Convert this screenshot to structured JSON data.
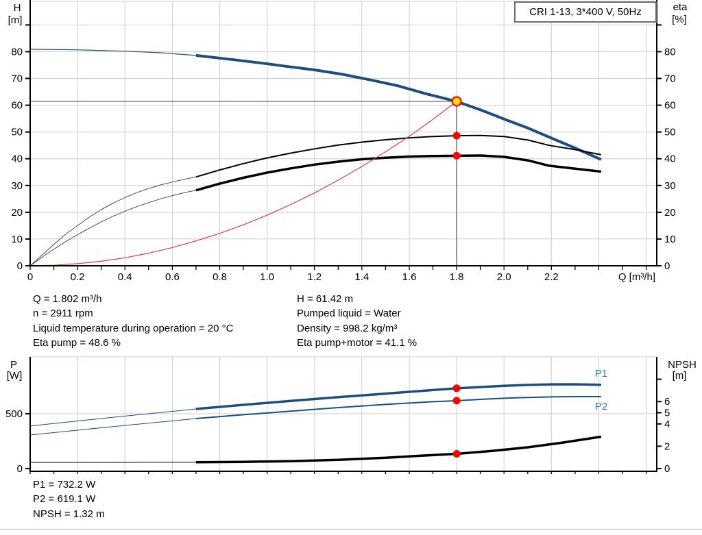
{
  "info_top": {
    "left": [
      "Q = 1.802 m³/h",
      "n = 2911 rpm",
      "Liquid temperature during operation = 20 °C",
      "Eta pump = 48.6 %"
    ],
    "right": [
      "H = 61.42 m",
      "Pumped liquid = Water",
      "Density = 998.2 kg/m³",
      "Eta pump+motor = 41.1 %"
    ]
  },
  "info_bottom": [
    "P1 = 732.2 W",
    "P2 = 619.1 W",
    "NPSH = 1.32 m"
  ],
  "colors": {
    "curve_blue": "#1d4e7e",
    "label_blue": "#2e75b6",
    "red": "#e8383d",
    "marker_red": "#ff0000",
    "duty_yellow": "#ffe100",
    "black": "#000000",
    "thin_gray": "#4a4a4a",
    "grid": "#cdcdcd",
    "ref_line": "#6a6a6a",
    "duty_line": "#4d4d4d"
  },
  "chart_data": [
    {
      "name": "qh-eta-chart",
      "type": "line",
      "title": "CRI 1-13, 3*400 V, 50Hz",
      "x_axis": {
        "label": "Q [m³/h]",
        "min": 0,
        "max": 2.645,
        "minor_step": 0.1,
        "grid_step": 0.2,
        "tick_values": [
          0,
          0.2,
          0.4,
          0.6,
          0.8,
          1.0,
          1.2,
          1.4,
          1.6,
          1.8,
          2.0,
          2.2
        ],
        "tick_labels": [
          "0",
          "0.2",
          "0.4",
          "0.6",
          "0.8",
          "1.0",
          "1.2",
          "1.4",
          "1.6",
          "1.8",
          "2.0",
          "2.2"
        ]
      },
      "y_left": {
        "label_lines": [
          "H",
          "[m]"
        ],
        "ticks": [
          0,
          10,
          20,
          30,
          40,
          50,
          60,
          70,
          80
        ],
        "extra_ticks": [
          90
        ],
        "grid": [
          10,
          20,
          30,
          40,
          50,
          60,
          70,
          80,
          90
        ],
        "range": [
          0,
          98.8
        ]
      },
      "y_right": {
        "label_lines": [
          "eta",
          "[%]"
        ],
        "ticks": [
          0,
          10,
          20,
          30,
          40,
          50,
          60,
          70,
          80
        ],
        "extra_ticks": [
          90
        ],
        "grid": [],
        "range": [
          0,
          98.8
        ]
      },
      "series": [
        {
          "name": "head-curve-lead",
          "axis": "left",
          "color": "curve_blue",
          "width": 1.2,
          "points": [
            [
              0,
              80.9
            ],
            [
              0.2,
              80.7
            ],
            [
              0.4,
              80.2
            ],
            [
              0.55,
              79.6
            ],
            [
              0.7,
              78.6
            ]
          ]
        },
        {
          "name": "head-curve",
          "axis": "left",
          "color": "curve_blue",
          "width": 4,
          "points": [
            [
              0.7,
              78.6
            ],
            [
              0.85,
              77.1
            ],
            [
              0.97,
              75.8
            ],
            [
              1.1,
              74.3
            ],
            [
              1.2,
              73.2
            ],
            [
              1.32,
              71.5
            ],
            [
              1.44,
              69.4
            ],
            [
              1.55,
              67.3
            ],
            [
              1.67,
              64.3
            ],
            [
              1.8,
              61.4
            ],
            [
              1.9,
              58.3
            ],
            [
              2.01,
              54.5
            ],
            [
              2.1,
              51.5
            ],
            [
              2.19,
              48.1
            ],
            [
              2.3,
              44.0
            ],
            [
              2.41,
              39.7
            ]
          ]
        },
        {
          "name": "eta-pump-curve-lead",
          "axis": "right",
          "color": "thin_gray",
          "width": 1,
          "points": [
            [
              0,
              0
            ],
            [
              0.05,
              4
            ],
            [
              0.1,
              8
            ],
            [
              0.15,
              11.8
            ],
            [
              0.2,
              15
            ],
            [
              0.25,
              18.2
            ],
            [
              0.3,
              21
            ],
            [
              0.35,
              23.4
            ],
            [
              0.4,
              25.5
            ],
            [
              0.45,
              27.3
            ],
            [
              0.5,
              28.9
            ],
            [
              0.55,
              30.2
            ],
            [
              0.6,
              31.3
            ],
            [
              0.65,
              32.3
            ],
            [
              0.7,
              33.2
            ]
          ]
        },
        {
          "name": "eta-pump-curve",
          "axis": "right",
          "color": "black",
          "width": 2,
          "points": [
            [
              0.7,
              33.2
            ],
            [
              0.8,
              35.8
            ],
            [
              0.9,
              38.2
            ],
            [
              1.0,
              40.3
            ],
            [
              1.1,
              42.1
            ],
            [
              1.2,
              43.7
            ],
            [
              1.3,
              45.1
            ],
            [
              1.4,
              46.2
            ],
            [
              1.5,
              47.1
            ],
            [
              1.6,
              47.8
            ],
            [
              1.7,
              48.3
            ],
            [
              1.8,
              48.6
            ],
            [
              1.9,
              48.7
            ],
            [
              2.0,
              48.3
            ],
            [
              2.1,
              47.0
            ],
            [
              2.19,
              45.0
            ],
            [
              2.3,
              43.4
            ],
            [
              2.41,
              41.5
            ]
          ]
        },
        {
          "name": "eta-pump-motor-curve-lead",
          "axis": "right",
          "color": "thin_gray",
          "width": 1,
          "points": [
            [
              0,
              0
            ],
            [
              0.05,
              3.2
            ],
            [
              0.1,
              6.2
            ],
            [
              0.15,
              9.0
            ],
            [
              0.2,
              11.6
            ],
            [
              0.25,
              14.1
            ],
            [
              0.3,
              16.4
            ],
            [
              0.35,
              18.5
            ],
            [
              0.4,
              20.4
            ],
            [
              0.45,
              22.1
            ],
            [
              0.5,
              23.6
            ],
            [
              0.55,
              25.0
            ],
            [
              0.6,
              26.2
            ],
            [
              0.65,
              27.3
            ],
            [
              0.7,
              28.2
            ]
          ]
        },
        {
          "name": "eta-pump-motor-curve",
          "axis": "right",
          "color": "black",
          "width": 3.5,
          "points": [
            [
              0.7,
              28.2
            ],
            [
              0.8,
              30.7
            ],
            [
              0.9,
              32.9
            ],
            [
              1.0,
              34.8
            ],
            [
              1.1,
              36.4
            ],
            [
              1.2,
              37.8
            ],
            [
              1.3,
              38.9
            ],
            [
              1.4,
              39.8
            ],
            [
              1.5,
              40.4
            ],
            [
              1.6,
              40.8
            ],
            [
              1.7,
              41.0
            ],
            [
              1.8,
              41.1
            ],
            [
              1.9,
              41.2
            ],
            [
              2.0,
              40.7
            ],
            [
              2.1,
              39.4
            ],
            [
              2.19,
              37.4
            ],
            [
              2.3,
              36.3
            ],
            [
              2.41,
              35.2
            ]
          ]
        },
        {
          "name": "system-curve",
          "axis": "left",
          "color": "red",
          "width": 1.2,
          "points": [
            [
              0,
              0
            ],
            [
              0.1,
              0.2
            ],
            [
              0.2,
              0.8
            ],
            [
              0.3,
              1.7
            ],
            [
              0.4,
              3.0
            ],
            [
              0.5,
              4.7
            ],
            [
              0.6,
              6.8
            ],
            [
              0.7,
              9.3
            ],
            [
              0.8,
              12.1
            ],
            [
              0.9,
              15.3
            ],
            [
              1.0,
              18.9
            ],
            [
              1.1,
              22.9
            ],
            [
              1.2,
              27.2
            ],
            [
              1.3,
              32.0
            ],
            [
              1.4,
              37.1
            ],
            [
              1.5,
              42.6
            ],
            [
              1.6,
              48.4
            ],
            [
              1.7,
              54.7
            ],
            [
              1.8,
              61.42
            ]
          ]
        }
      ],
      "reference_lines": [
        {
          "name": "head-ref-line",
          "dir": "h",
          "axis": "left",
          "value": 61.42,
          "x_from": 0,
          "x_to": 1.8,
          "color": "ref_line",
          "width": 1.2
        },
        {
          "name": "duty-q-line",
          "dir": "v",
          "axis": "left",
          "value": 1.8,
          "y_from": 0,
          "y_to": 61.42,
          "color": "duty_line",
          "width": 1.2
        }
      ],
      "markers": [
        {
          "name": "duty-point",
          "x": 1.8,
          "value": 61.42,
          "axis": "left",
          "fill": "duty_yellow",
          "stroke": "marker_red",
          "r": 6.5
        },
        {
          "name": "eta-pump-point",
          "x": 1.8,
          "value": 48.6,
          "axis": "right",
          "fill": "marker_red",
          "r": 5.5
        },
        {
          "name": "eta-pump-motor-point",
          "x": 1.8,
          "value": 41.1,
          "axis": "right",
          "fill": "marker_red",
          "r": 5.5
        }
      ],
      "annotations": []
    },
    {
      "name": "power-npsh-chart",
      "type": "line",
      "x_axis": {
        "min": 0,
        "max": 2.645,
        "minor_step": 0.1,
        "grid_step": 0.2
      },
      "y_left": {
        "label_lines": [
          "P",
          "[W]"
        ],
        "ticks": [
          0,
          500
        ],
        "grid": [
          500
        ],
        "range": [
          0,
          1020
        ]
      },
      "y_right": {
        "label_lines": [
          "NPSH",
          "[m]"
        ],
        "ticks": [
          0,
          2,
          4,
          5,
          6
        ],
        "extra_ticks": [
          8
        ],
        "grid": [],
        "range": [
          0,
          10
        ]
      },
      "series": [
        {
          "name": "p1-curve-lead",
          "axis": "left",
          "color": "curve_blue",
          "width": 1,
          "points": [
            [
              0,
              388
            ],
            [
              0.35,
              468
            ],
            [
              0.7,
              544
            ]
          ]
        },
        {
          "name": "p1-curve",
          "axis": "left",
          "color": "curve_blue",
          "width": 3.5,
          "points": [
            [
              0.7,
              544
            ],
            [
              0.9,
              581
            ],
            [
              1.1,
              617
            ],
            [
              1.3,
              651
            ],
            [
              1.5,
              684
            ],
            [
              1.7,
              716
            ],
            [
              1.8,
              732
            ],
            [
              1.9,
              744
            ],
            [
              2.0,
              755
            ],
            [
              2.1,
              763
            ],
            [
              2.2,
              768
            ],
            [
              2.3,
              769
            ],
            [
              2.41,
              764
            ]
          ]
        },
        {
          "name": "p2-curve-lead",
          "axis": "left",
          "color": "curve_blue",
          "width": 1,
          "points": [
            [
              0,
              306
            ],
            [
              0.35,
              383
            ],
            [
              0.7,
              456
            ]
          ]
        },
        {
          "name": "p2-curve",
          "axis": "left",
          "color": "curve_blue",
          "width": 2,
          "points": [
            [
              0.7,
              456
            ],
            [
              0.9,
              491
            ],
            [
              1.1,
              524
            ],
            [
              1.3,
              556
            ],
            [
              1.5,
              585
            ],
            [
              1.7,
              610
            ],
            [
              1.8,
              619
            ],
            [
              1.9,
              631
            ],
            [
              2.0,
              641
            ],
            [
              2.1,
              649
            ],
            [
              2.2,
              654
            ],
            [
              2.3,
              656
            ],
            [
              2.41,
              656
            ]
          ]
        },
        {
          "name": "npsh-curve-lead",
          "axis": "right",
          "color": "black",
          "width": 1,
          "points": [
            [
              0,
              0.55
            ],
            [
              0.35,
              0.55
            ],
            [
              0.7,
              0.57
            ]
          ]
        },
        {
          "name": "npsh-curve",
          "axis": "right",
          "color": "black",
          "width": 3.5,
          "points": [
            [
              0.7,
              0.57
            ],
            [
              0.9,
              0.6
            ],
            [
              1.1,
              0.66
            ],
            [
              1.3,
              0.78
            ],
            [
              1.5,
              0.97
            ],
            [
              1.65,
              1.15
            ],
            [
              1.8,
              1.32
            ],
            [
              1.95,
              1.58
            ],
            [
              2.1,
              1.9
            ],
            [
              2.25,
              2.33
            ],
            [
              2.41,
              2.85
            ]
          ]
        }
      ],
      "reference_lines": [],
      "markers": [
        {
          "name": "p1-point",
          "x": 1.8,
          "value": 732.2,
          "axis": "left",
          "fill": "marker_red",
          "r": 5.5
        },
        {
          "name": "p2-point",
          "x": 1.8,
          "value": 619.1,
          "axis": "left",
          "fill": "marker_red",
          "r": 5.5
        },
        {
          "name": "npsh-point",
          "x": 1.8,
          "value": 1.32,
          "axis": "right",
          "fill": "marker_red",
          "r": 5.5
        }
      ],
      "annotations": [
        {
          "name": "p1-label",
          "text": "P1",
          "x": 2.41,
          "value": 869,
          "axis": "left",
          "color": "label_blue"
        },
        {
          "name": "p2-label",
          "text": "P2",
          "x": 2.41,
          "value": 570,
          "axis": "left",
          "color": "label_blue"
        }
      ]
    }
  ]
}
